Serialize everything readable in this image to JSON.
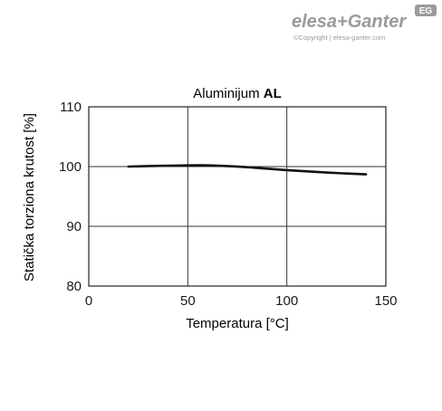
{
  "brand": {
    "logo_text": "elesa+Ganter",
    "badge_text": "EG",
    "copyright": "©Copyright | elesa-ganter.com",
    "text_color": "#9a9a9a"
  },
  "chart_data": {
    "type": "line",
    "title_regular": "Aluminijum ",
    "title_bold": "AL",
    "xlabel": "Temperatura [°C]",
    "ylabel": "Statička torziona krutost [%]",
    "xlim": [
      0,
      150
    ],
    "ylim": [
      80,
      110
    ],
    "xticks": [
      0,
      50,
      100,
      150
    ],
    "yticks": [
      80,
      90,
      100,
      110
    ],
    "grid": true,
    "line_color": "#111111",
    "series": [
      {
        "x": [
          20,
          40,
          60,
          80,
          100,
          120,
          140
        ],
        "y": [
          100.0,
          100.15,
          100.2,
          99.9,
          99.4,
          99.0,
          98.7
        ]
      }
    ]
  }
}
